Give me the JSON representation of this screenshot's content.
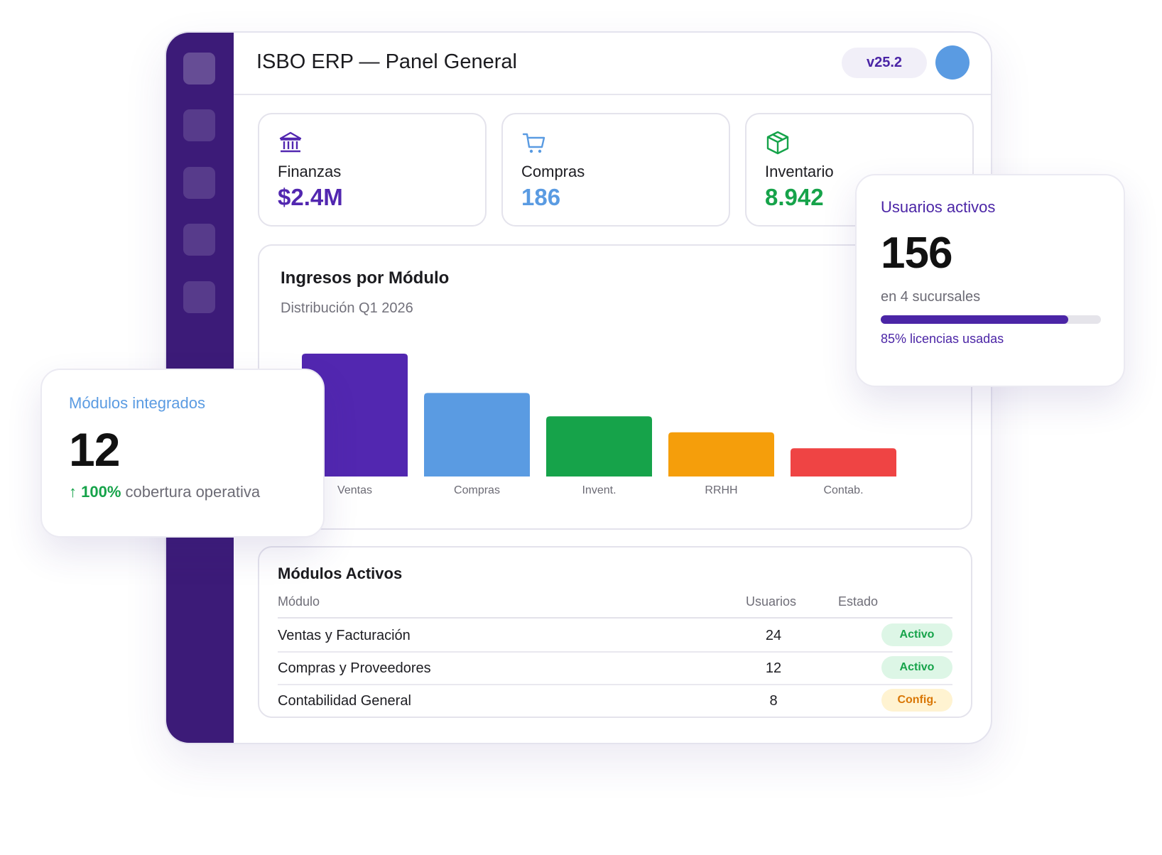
{
  "window": {
    "title": "ISBO ERP — Panel General",
    "version": "v25.2"
  },
  "sidebar": {
    "items": [
      {
        "icon": "nav-icon-1"
      },
      {
        "icon": "nav-icon-2"
      },
      {
        "icon": "nav-icon-3"
      },
      {
        "icon": "nav-icon-4"
      },
      {
        "icon": "nav-icon-5"
      }
    ]
  },
  "kpis": [
    {
      "label": "Finanzas",
      "value": "$2.4M",
      "icon": "bank-icon",
      "color": "#5227b0"
    },
    {
      "label": "Compras",
      "value": "186",
      "icon": "cart-icon",
      "color": "#5a9be2"
    },
    {
      "label": "Inventario",
      "value": "8.942",
      "icon": "box-icon",
      "color": "#16a34a"
    }
  ],
  "chart_data": {
    "type": "bar",
    "title": "Ingresos por Módulo",
    "subtitle": "Distribución Q1 2026",
    "categories": [
      "Ventas",
      "Compras",
      "Invent.",
      "RRHH",
      "Contab."
    ],
    "values": [
      100,
      68,
      49,
      36,
      23
    ],
    "colors": [
      "#5227b0",
      "#5a9be2",
      "#16a34a",
      "#f59e0b",
      "#ef4444"
    ],
    "ylim": [
      0,
      100
    ],
    "grid": false
  },
  "table": {
    "title": "Módulos Activos",
    "headers": [
      "Módulo",
      "Usuarios",
      "Estado"
    ],
    "rows": [
      {
        "name": "Ventas y Facturación",
        "users": "24",
        "status": "Activo",
        "kind": "active"
      },
      {
        "name": "Compras y Proveedores",
        "users": "12",
        "status": "Activo",
        "kind": "active"
      },
      {
        "name": "Contabilidad General",
        "users": "8",
        "status": "Config.",
        "kind": "config"
      }
    ]
  },
  "modules_card": {
    "label": "Módulos integrados",
    "value": "12",
    "trend": "↑ 100%",
    "trend_text": "cobertura operativa"
  },
  "users_card": {
    "label": "Usuarios activos",
    "value": "156",
    "sub": "en 4 sucursales",
    "progress": 0.85,
    "footer": "85% licencias usadas"
  }
}
